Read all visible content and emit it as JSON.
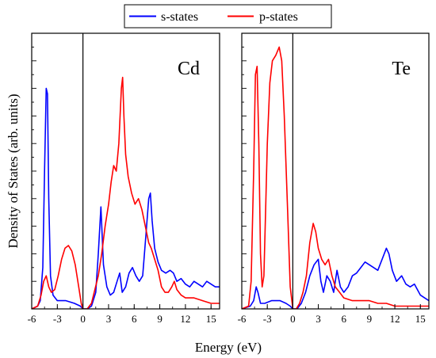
{
  "chart_data": {
    "type": "line",
    "xlabel": "Energy (eV)",
    "ylabel": "Density of States (arb. units)",
    "xlim": [
      -6,
      16
    ],
    "ylim": [
      0,
      1.0
    ],
    "xticks": [
      -6,
      -3,
      0,
      3,
      6,
      9,
      12,
      15
    ],
    "legend": {
      "placement": "top-center",
      "entries": [
        {
          "name": "s-states",
          "color": "#0000ff"
        },
        {
          "name": "p-states",
          "color": "#ff0000"
        }
      ]
    },
    "panels": [
      {
        "label": "Cd",
        "series": [
          {
            "name": "s-states",
            "color": "#0000ff",
            "points": [
              [
                -6,
                0
              ],
              [
                -5.3,
                0.01
              ],
              [
                -5.0,
                0.03
              ],
              [
                -4.7,
                0.15
              ],
              [
                -4.5,
                0.5
              ],
              [
                -4.3,
                0.8
              ],
              [
                -4.15,
                0.78
              ],
              [
                -4.0,
                0.4
              ],
              [
                -3.8,
                0.12
              ],
              [
                -3.5,
                0.05
              ],
              [
                -3,
                0.03
              ],
              [
                -2,
                0.03
              ],
              [
                -1,
                0.02
              ],
              [
                -0.3,
                0.01
              ],
              [
                0,
                0
              ],
              [
                0.5,
                0
              ],
              [
                1,
                0.01
              ],
              [
                1.5,
                0.06
              ],
              [
                1.8,
                0.2
              ],
              [
                2.1,
                0.37
              ],
              [
                2.4,
                0.16
              ],
              [
                2.8,
                0.08
              ],
              [
                3.2,
                0.05
              ],
              [
                3.6,
                0.06
              ],
              [
                4.0,
                0.1
              ],
              [
                4.3,
                0.13
              ],
              [
                4.6,
                0.06
              ],
              [
                5.0,
                0.08
              ],
              [
                5.4,
                0.13
              ],
              [
                5.8,
                0.15
              ],
              [
                6.2,
                0.12
              ],
              [
                6.6,
                0.1
              ],
              [
                7.0,
                0.12
              ],
              [
                7.4,
                0.28
              ],
              [
                7.7,
                0.4
              ],
              [
                7.9,
                0.42
              ],
              [
                8.1,
                0.32
              ],
              [
                8.4,
                0.22
              ],
              [
                8.8,
                0.17
              ],
              [
                9.2,
                0.14
              ],
              [
                9.7,
                0.13
              ],
              [
                10.2,
                0.14
              ],
              [
                10.6,
                0.13
              ],
              [
                11,
                0.1
              ],
              [
                11.5,
                0.11
              ],
              [
                12,
                0.09
              ],
              [
                12.5,
                0.08
              ],
              [
                13,
                0.1
              ],
              [
                13.5,
                0.09
              ],
              [
                14,
                0.08
              ],
              [
                14.5,
                0.1
              ],
              [
                15,
                0.09
              ],
              [
                15.5,
                0.08
              ],
              [
                16,
                0.08
              ]
            ]
          },
          {
            "name": "p-states",
            "color": "#ff0000",
            "points": [
              [
                -6,
                0
              ],
              [
                -5.3,
                0.01
              ],
              [
                -4.9,
                0.05
              ],
              [
                -4.6,
                0.1
              ],
              [
                -4.3,
                0.12
              ],
              [
                -4.0,
                0.08
              ],
              [
                -3.7,
                0.06
              ],
              [
                -3.3,
                0.07
              ],
              [
                -2.9,
                0.12
              ],
              [
                -2.5,
                0.18
              ],
              [
                -2.1,
                0.22
              ],
              [
                -1.7,
                0.23
              ],
              [
                -1.3,
                0.21
              ],
              [
                -0.9,
                0.16
              ],
              [
                -0.5,
                0.08
              ],
              [
                -0.2,
                0.02
              ],
              [
                0,
                0
              ],
              [
                0.5,
                0
              ],
              [
                1,
                0.02
              ],
              [
                1.4,
                0.07
              ],
              [
                1.8,
                0.12
              ],
              [
                2.2,
                0.2
              ],
              [
                2.6,
                0.3
              ],
              [
                3.0,
                0.38
              ],
              [
                3.3,
                0.46
              ],
              [
                3.6,
                0.52
              ],
              [
                3.9,
                0.5
              ],
              [
                4.2,
                0.6
              ],
              [
                4.5,
                0.8
              ],
              [
                4.65,
                0.84
              ],
              [
                4.8,
                0.7
              ],
              [
                5.0,
                0.56
              ],
              [
                5.3,
                0.48
              ],
              [
                5.7,
                0.42
              ],
              [
                6.1,
                0.38
              ],
              [
                6.5,
                0.4
              ],
              [
                6.9,
                0.36
              ],
              [
                7.3,
                0.3
              ],
              [
                7.7,
                0.24
              ],
              [
                8.0,
                0.22
              ],
              [
                8.4,
                0.18
              ],
              [
                8.8,
                0.14
              ],
              [
                9.2,
                0.08
              ],
              [
                9.6,
                0.06
              ],
              [
                10.0,
                0.06
              ],
              [
                10.4,
                0.08
              ],
              [
                10.7,
                0.1
              ],
              [
                11.0,
                0.07
              ],
              [
                11.5,
                0.05
              ],
              [
                12,
                0.04
              ],
              [
                13,
                0.04
              ],
              [
                14,
                0.03
              ],
              [
                15,
                0.02
              ],
              [
                16,
                0.02
              ]
            ]
          }
        ]
      },
      {
        "label": "Te",
        "series": [
          {
            "name": "s-states",
            "color": "#0000ff",
            "points": [
              [
                -6,
                0
              ],
              [
                -5.0,
                0.01
              ],
              [
                -4.6,
                0.03
              ],
              [
                -4.3,
                0.08
              ],
              [
                -4.1,
                0.06
              ],
              [
                -3.8,
                0.02
              ],
              [
                -3.3,
                0.02
              ],
              [
                -2.5,
                0.03
              ],
              [
                -1.5,
                0.03
              ],
              [
                -0.8,
                0.02
              ],
              [
                -0.3,
                0.01
              ],
              [
                0,
                0
              ],
              [
                0.5,
                0
              ],
              [
                1,
                0.02
              ],
              [
                1.5,
                0.06
              ],
              [
                2.0,
                0.12
              ],
              [
                2.5,
                0.16
              ],
              [
                3.0,
                0.18
              ],
              [
                3.3,
                0.1
              ],
              [
                3.6,
                0.06
              ],
              [
                4.0,
                0.12
              ],
              [
                4.4,
                0.1
              ],
              [
                4.8,
                0.06
              ],
              [
                5.2,
                0.14
              ],
              [
                5.6,
                0.08
              ],
              [
                6.0,
                0.06
              ],
              [
                6.5,
                0.08
              ],
              [
                7.0,
                0.12
              ],
              [
                7.5,
                0.13
              ],
              [
                8.0,
                0.15
              ],
              [
                8.5,
                0.17
              ],
              [
                9.0,
                0.16
              ],
              [
                9.5,
                0.15
              ],
              [
                10.0,
                0.14
              ],
              [
                10.5,
                0.18
              ],
              [
                11.0,
                0.22
              ],
              [
                11.3,
                0.2
              ],
              [
                11.7,
                0.14
              ],
              [
                12.2,
                0.1
              ],
              [
                12.8,
                0.12
              ],
              [
                13.3,
                0.09
              ],
              [
                13.8,
                0.08
              ],
              [
                14.3,
                0.09
              ],
              [
                15,
                0.05
              ],
              [
                15.5,
                0.04
              ],
              [
                16,
                0.03
              ]
            ]
          },
          {
            "name": "p-states",
            "color": "#ff0000",
            "points": [
              [
                -6,
                0
              ],
              [
                -5.2,
                0.01
              ],
              [
                -4.9,
                0.1
              ],
              [
                -4.6,
                0.5
              ],
              [
                -4.4,
                0.85
              ],
              [
                -4.2,
                0.88
              ],
              [
                -4.0,
                0.6
              ],
              [
                -3.8,
                0.2
              ],
              [
                -3.6,
                0.08
              ],
              [
                -3.4,
                0.12
              ],
              [
                -3.2,
                0.35
              ],
              [
                -3.0,
                0.6
              ],
              [
                -2.7,
                0.82
              ],
              [
                -2.4,
                0.9
              ],
              [
                -2.0,
                0.92
              ],
              [
                -1.6,
                0.95
              ],
              [
                -1.3,
                0.9
              ],
              [
                -1.0,
                0.7
              ],
              [
                -0.6,
                0.35
              ],
              [
                -0.3,
                0.08
              ],
              [
                0,
                0
              ],
              [
                0.4,
                0
              ],
              [
                0.8,
                0.02
              ],
              [
                1.2,
                0.06
              ],
              [
                1.6,
                0.12
              ],
              [
                2.0,
                0.24
              ],
              [
                2.4,
                0.31
              ],
              [
                2.7,
                0.28
              ],
              [
                3.0,
                0.22
              ],
              [
                3.4,
                0.18
              ],
              [
                3.8,
                0.16
              ],
              [
                4.2,
                0.18
              ],
              [
                4.6,
                0.12
              ],
              [
                5.0,
                0.08
              ],
              [
                5.5,
                0.06
              ],
              [
                6.0,
                0.04
              ],
              [
                7,
                0.03
              ],
              [
                8,
                0.03
              ],
              [
                9,
                0.03
              ],
              [
                10,
                0.02
              ],
              [
                11,
                0.02
              ],
              [
                12,
                0.01
              ],
              [
                13,
                0.01
              ],
              [
                14,
                0.01
              ],
              [
                15,
                0.01
              ],
              [
                16,
                0.01
              ]
            ]
          }
        ]
      }
    ]
  }
}
